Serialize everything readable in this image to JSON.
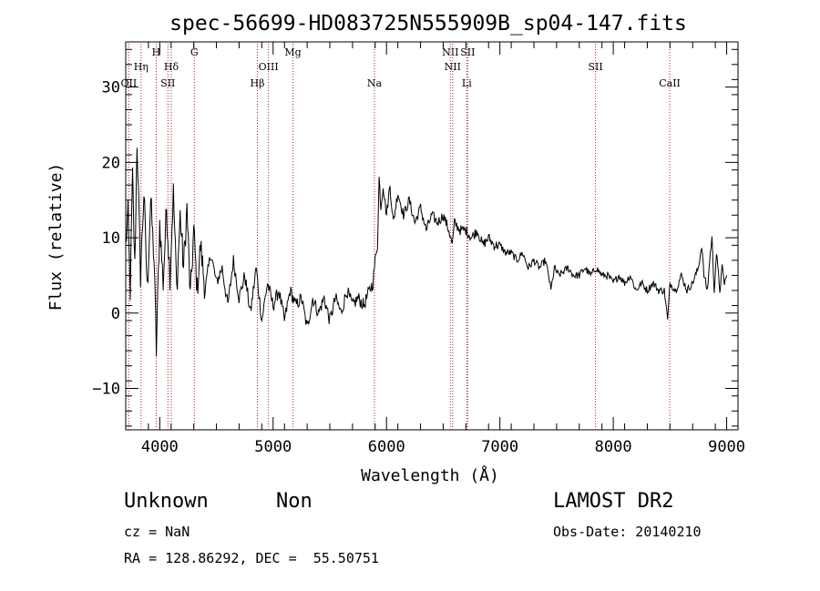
{
  "chart_data": {
    "type": "line",
    "title": "spec-56699-HD083725N555909B_sp04-147.fits",
    "xlabel": "Wavelength (Å)",
    "ylabel": "Flux (relative)",
    "xlim": [
      3700,
      9100
    ],
    "ylim": [
      -15.5,
      36
    ],
    "xticks": [
      4000,
      5000,
      6000,
      7000,
      8000,
      9000
    ],
    "yticks": [
      -10,
      0,
      10,
      20,
      30
    ],
    "grid": false,
    "line_color": "#000000",
    "marker_color": "#b22222",
    "spectral_lines": [
      {
        "label": "OII",
        "wavelength": 3727,
        "row": 3
      },
      {
        "label": "Hη",
        "wavelength": 3835,
        "row": 2
      },
      {
        "label": "H",
        "wavelength": 3969,
        "row": 1
      },
      {
        "label": "SII",
        "wavelength": 4072,
        "row": 3
      },
      {
        "label": "Hδ",
        "wavelength": 4102,
        "row": 2
      },
      {
        "label": "G",
        "wavelength": 4305,
        "row": 1
      },
      {
        "label": "Hβ",
        "wavelength": 4861,
        "row": 3
      },
      {
        "label": "OIII",
        "wavelength": 4959,
        "row": 2
      },
      {
        "label": "Mg",
        "wavelength": 5175,
        "row": 1
      },
      {
        "label": "Na",
        "wavelength": 5894,
        "row": 3
      },
      {
        "label": "NII",
        "wavelength": 6563,
        "row": 1
      },
      {
        "label": "NII",
        "wavelength": 6583,
        "row": 2
      },
      {
        "label": "SII",
        "wavelength": 6716,
        "row": 1
      },
      {
        "label": "Li",
        "wavelength": 6708,
        "row": 3
      },
      {
        "label": "SII",
        "wavelength": 7843,
        "row": 2
      },
      {
        "label": "CaII",
        "wavelength": 8498,
        "row": 3
      }
    ],
    "series": [
      {
        "points": [
          [
            3700,
            9
          ],
          [
            3720,
            13
          ],
          [
            3740,
            3
          ],
          [
            3760,
            18
          ],
          [
            3780,
            6
          ],
          [
            3800,
            23
          ],
          [
            3830,
            5
          ],
          [
            3860,
            16
          ],
          [
            3890,
            3
          ],
          [
            3920,
            15
          ],
          [
            3950,
            7
          ],
          [
            3970,
            -5
          ],
          [
            4000,
            12
          ],
          [
            4030,
            4
          ],
          [
            4060,
            14
          ],
          [
            4090,
            5
          ],
          [
            4120,
            16
          ],
          [
            4150,
            3
          ],
          [
            4180,
            13
          ],
          [
            4210,
            6
          ],
          [
            4240,
            14
          ],
          [
            4270,
            2
          ],
          [
            4300,
            11
          ],
          [
            4330,
            3
          ],
          [
            4360,
            9
          ],
          [
            4400,
            3
          ],
          [
            4450,
            8
          ],
          [
            4500,
            4
          ],
          [
            4550,
            6
          ],
          [
            4600,
            1
          ],
          [
            4650,
            7
          ],
          [
            4700,
            2
          ],
          [
            4750,
            5
          ],
          [
            4800,
            0
          ],
          [
            4850,
            6
          ],
          [
            4900,
            -1
          ],
          [
            4950,
            4
          ],
          [
            5000,
            1
          ],
          [
            5050,
            3
          ],
          [
            5100,
            -1
          ],
          [
            5150,
            3
          ],
          [
            5200,
            1
          ],
          [
            5250,
            2
          ],
          [
            5300,
            -2
          ],
          [
            5350,
            2
          ],
          [
            5400,
            0
          ],
          [
            5450,
            2
          ],
          [
            5500,
            -1
          ],
          [
            5550,
            2
          ],
          [
            5600,
            0
          ],
          [
            5650,
            3
          ],
          [
            5700,
            1
          ],
          [
            5750,
            2
          ],
          [
            5800,
            1
          ],
          [
            5850,
            3
          ],
          [
            5880,
            4
          ],
          [
            5900,
            7
          ],
          [
            5920,
            9
          ],
          [
            5935,
            18
          ],
          [
            5950,
            14
          ],
          [
            5970,
            17
          ],
          [
            6000,
            13
          ],
          [
            6030,
            17
          ],
          [
            6060,
            12
          ],
          [
            6100,
            16
          ],
          [
            6150,
            13
          ],
          [
            6200,
            15
          ],
          [
            6250,
            12
          ],
          [
            6300,
            14
          ],
          [
            6350,
            11
          ],
          [
            6400,
            13
          ],
          [
            6450,
            12
          ],
          [
            6500,
            13
          ],
          [
            6550,
            11
          ],
          [
            6580,
            9
          ],
          [
            6600,
            12
          ],
          [
            6650,
            11
          ],
          [
            6700,
            11
          ],
          [
            6750,
            10
          ],
          [
            6800,
            11
          ],
          [
            6850,
            9
          ],
          [
            6900,
            10
          ],
          [
            6950,
            9
          ],
          [
            7000,
            9
          ],
          [
            7050,
            8
          ],
          [
            7100,
            8
          ],
          [
            7150,
            7
          ],
          [
            7200,
            8
          ],
          [
            7250,
            6
          ],
          [
            7300,
            7
          ],
          [
            7350,
            6
          ],
          [
            7400,
            7
          ],
          [
            7430,
            5
          ],
          [
            7450,
            3
          ],
          [
            7480,
            6
          ],
          [
            7520,
            5
          ],
          [
            7600,
            6
          ],
          [
            7650,
            5
          ],
          [
            7700,
            5
          ],
          [
            7750,
            6
          ],
          [
            7800,
            5
          ],
          [
            7850,
            6
          ],
          [
            7900,
            5
          ],
          [
            7950,
            5
          ],
          [
            8000,
            4
          ],
          [
            8050,
            5
          ],
          [
            8100,
            4
          ],
          [
            8150,
            5
          ],
          [
            8200,
            3
          ],
          [
            8250,
            4
          ],
          [
            8300,
            3
          ],
          [
            8350,
            4
          ],
          [
            8400,
            3
          ],
          [
            8450,
            3
          ],
          [
            8480,
            -1
          ],
          [
            8500,
            4
          ],
          [
            8550,
            3
          ],
          [
            8600,
            5
          ],
          [
            8650,
            3
          ],
          [
            8700,
            4
          ],
          [
            8750,
            6
          ],
          [
            8780,
            9
          ],
          [
            8800,
            5
          ],
          [
            8830,
            3
          ],
          [
            8850,
            7
          ],
          [
            8870,
            10
          ],
          [
            8890,
            3
          ],
          [
            8910,
            8
          ],
          [
            8940,
            3
          ],
          [
            8960,
            6
          ],
          [
            8980,
            4
          ],
          [
            9000,
            5
          ]
        ]
      }
    ]
  },
  "footer": {
    "object_type": "Unknown",
    "object_class": "Non",
    "survey": "LAMOST DR2",
    "cz": "cz = NaN",
    "obs_date": "Obs-Date: 20140210",
    "coords": "RA = 128.86292, DEC =  55.50751"
  }
}
